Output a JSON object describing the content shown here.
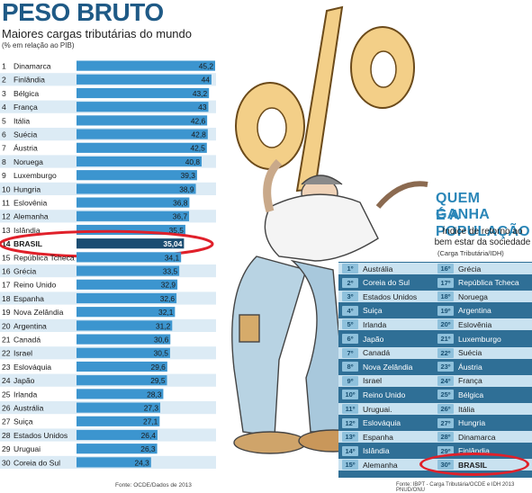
{
  "header": {
    "title": "PESO BRUTO",
    "subtitle": "Maiores cargas tributárias do mundo",
    "unit": "(% em relação ao PIB)"
  },
  "chart_data": {
    "type": "bar",
    "title": "PESO BRUTO",
    "subtitle": "Maiores cargas tributárias do mundo",
    "ylabel": "(% em relação ao PIB)",
    "xlabel": "",
    "highlight": "BRASIL",
    "colors": {
      "bar": "#3c95cf",
      "highlight_bar": "#1b4d72",
      "row_alt": "#dcebf5",
      "accent_circle": "#e0202a"
    },
    "ranks": [
      "1",
      "2",
      "3",
      "4",
      "5",
      "6",
      "7",
      "8",
      "9",
      "10",
      "11",
      "12",
      "13",
      "14",
      "15",
      "16",
      "17",
      "18",
      "19",
      "20",
      "21",
      "22",
      "23",
      "24",
      "25",
      "26",
      "27",
      "28",
      "29",
      "30"
    ],
    "categories": [
      "Dinamarca",
      "Finlândia",
      "Bélgica",
      "França",
      "Itália",
      "Suécia",
      "Áustria",
      "Noruega",
      "Luxemburgo",
      "Hungria",
      "Eslovênia",
      "Alemanha",
      "Islândia",
      "BRASIL",
      "República Tcheca",
      "Grécia",
      "Reino Unido",
      "Espanha",
      "Nova Zelândia",
      "Argentina",
      "Canadá",
      "Israel",
      "Eslováquia",
      "Japão",
      "Irlanda",
      "Austrália",
      "Suiça",
      "Estados Unidos",
      "Uruguai",
      "Coreia do Sul"
    ],
    "values": [
      45.2,
      44,
      43.2,
      43,
      42.6,
      42.8,
      42.5,
      40.8,
      39.3,
      38.9,
      36.8,
      36.7,
      35.5,
      35.04,
      34.1,
      33.5,
      32.9,
      32.6,
      32.1,
      31.2,
      30.6,
      30.5,
      29.6,
      29.5,
      28.3,
      27.3,
      27.1,
      26.4,
      26.3,
      24.3
    ],
    "value_labels": [
      "45,2",
      "44",
      "43,2",
      "43",
      "42,6",
      "42,8",
      "42,5",
      "40,8",
      "39,3",
      "38,9",
      "36,8",
      "36,7",
      "35,5",
      "35,04",
      "34,1",
      "33,5",
      "32,9",
      "32,6",
      "32,1",
      "31,2",
      "30,6",
      "30,5",
      "29,6",
      "29,5",
      "28,3",
      "27,3",
      "27,1",
      "26,4",
      "26,3",
      "24,3"
    ],
    "ylim": [
      0,
      45.2
    ],
    "grid": false,
    "legend": "none"
  },
  "source_left": "Fonte: OCDE/Dados de 2013",
  "ranking": {
    "title_line1": "QUEM GANHA",
    "title_line2": "É A POPULAÇÃO",
    "subtitle": "Índice de retorno ao bem estar da sociedade",
    "unit": "(Carga Tributária/IDH)",
    "left_column": [
      {
        "rank": "1º",
        "country": "Austrália"
      },
      {
        "rank": "2º",
        "country": "Coreia do Sul"
      },
      {
        "rank": "3º",
        "country": "Estados Unidos"
      },
      {
        "rank": "4º",
        "country": "Suiça"
      },
      {
        "rank": "5º",
        "country": "Irlanda"
      },
      {
        "rank": "6º",
        "country": "Japão"
      },
      {
        "rank": "7º",
        "country": "Canadá"
      },
      {
        "rank": "8º",
        "country": "Nova Zelândia"
      },
      {
        "rank": "9º",
        "country": "Israel"
      },
      {
        "rank": "10º",
        "country": "Reino Unido"
      },
      {
        "rank": "11º",
        "country": "Uruguai."
      },
      {
        "rank": "12º",
        "country": "Eslováquia"
      },
      {
        "rank": "13º",
        "country": "Espanha"
      },
      {
        "rank": "14º",
        "country": "Islândia"
      },
      {
        "rank": "15º",
        "country": "Alemanha"
      }
    ],
    "right_column": [
      {
        "rank": "16º",
        "country": "Grécia"
      },
      {
        "rank": "17º",
        "country": "República Tcheca"
      },
      {
        "rank": "18º",
        "country": "Noruega"
      },
      {
        "rank": "19º",
        "country": "Argentina"
      },
      {
        "rank": "20º",
        "country": "Eslovênia"
      },
      {
        "rank": "21º",
        "country": "Luxemburgo"
      },
      {
        "rank": "22º",
        "country": "Suécia"
      },
      {
        "rank": "23º",
        "country": "Áustria"
      },
      {
        "rank": "24º",
        "country": "França"
      },
      {
        "rank": "25º",
        "country": "Bélgica"
      },
      {
        "rank": "26º",
        "country": "Itália"
      },
      {
        "rank": "27º",
        "country": "Hungria"
      },
      {
        "rank": "28º",
        "country": "Dinamarca"
      },
      {
        "rank": "29º",
        "country": "Finlândia"
      },
      {
        "rank": "30º",
        "country": "BRASIL"
      }
    ]
  },
  "source_right": "Fonte: IBPT - Carga Tributária/OCDE e IDH 2013 PNUD/ONU",
  "illustration": {
    "symbol": "%",
    "description_icon": "percent-sign-burden-illustration"
  }
}
